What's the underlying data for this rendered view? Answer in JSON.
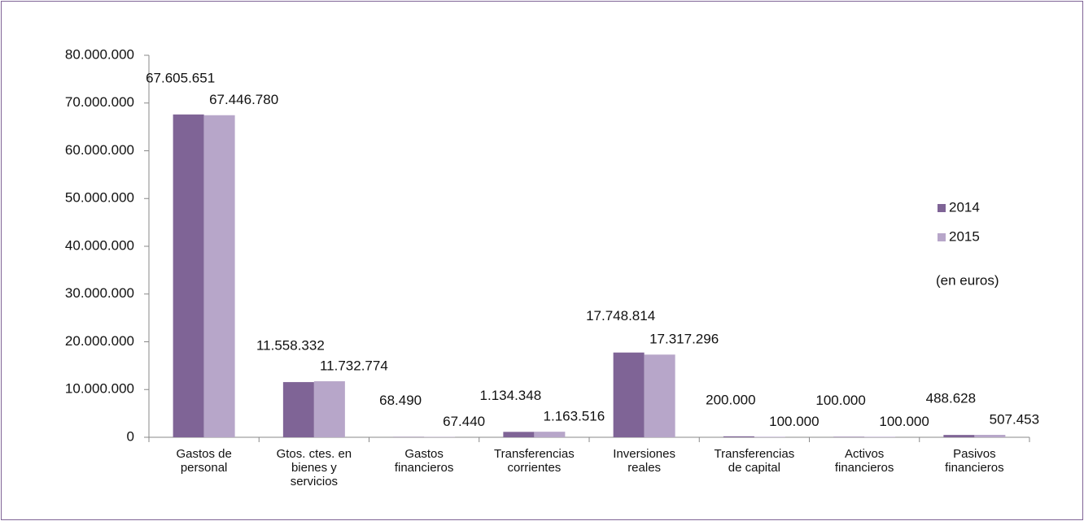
{
  "chart_data": {
    "type": "bar",
    "categories": [
      "Gastos de personal",
      "Gtos. ctes. en bienes y servicios",
      "Gastos financieros",
      "Transferencias corrientes",
      "Inversiones reales",
      "Transferencias de capital",
      "Activos financieros",
      "Pasivos financieros"
    ],
    "series": [
      {
        "name": "2014",
        "color": "#7f6496",
        "values": [
          67605651,
          11558332,
          68490,
          1134348,
          17748814,
          200000,
          100000,
          488628
        ],
        "value_labels": [
          "67.605.651",
          "11.558.332",
          "68.490",
          "1.134.348",
          "17.748.814",
          "200.000",
          "100.000",
          "488.628"
        ]
      },
      {
        "name": "2015",
        "color": "#b7a6c9",
        "values": [
          67446780,
          11732774,
          67440,
          1163516,
          17317296,
          100000,
          100000,
          507453
        ],
        "value_labels": [
          "67.446.780",
          "11.732.774",
          "67.440",
          "1.163.516",
          "17.317.296",
          "100.000",
          "100.000",
          "507.453"
        ]
      }
    ],
    "annotation": "(en euros)",
    "ylim": [
      0,
      80000000
    ],
    "yticks": [
      0,
      {
        "value": 10000000,
        "label": "10.000.000"
      },
      {
        "value": 20000000,
        "label": "20.000.000"
      },
      {
        "value": 30000000,
        "label": "30.000.000"
      },
      {
        "value": 40000000,
        "label": "40.000.000"
      },
      {
        "value": 50000000,
        "label": "50.000.000"
      },
      {
        "value": 60000000,
        "label": "60.000.000"
      },
      {
        "value": 70000000,
        "label": "70.000.000"
      },
      {
        "value": 80000000,
        "label": "80.000.000"
      }
    ],
    "grid": false,
    "legend": "right"
  }
}
